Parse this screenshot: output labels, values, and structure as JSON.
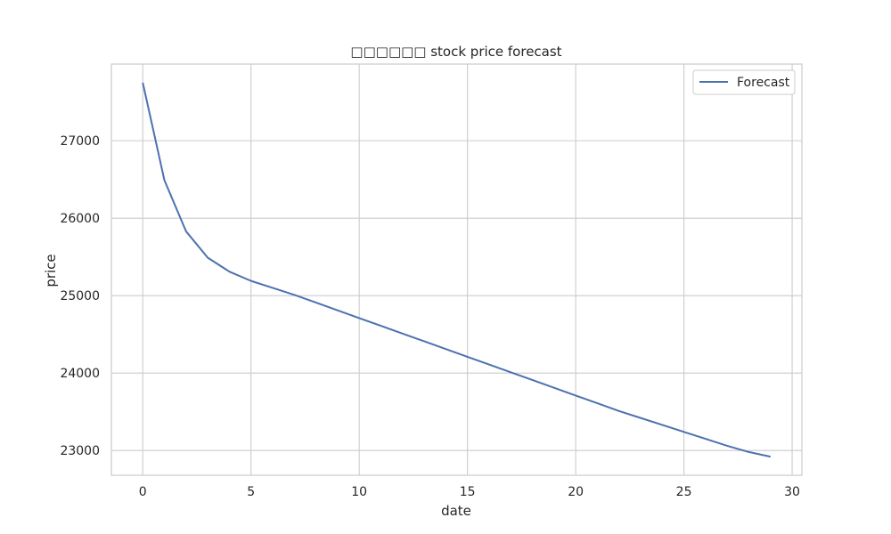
{
  "chart_data": {
    "type": "line",
    "title": "□□□□□□ stock price forecast",
    "xlabel": "date",
    "ylabel": "price",
    "xlim": [
      -1.45,
      30.45
    ],
    "ylim": [
      22680,
      27990
    ],
    "xticks": [
      0,
      5,
      10,
      15,
      20,
      25,
      30
    ],
    "yticks": [
      23000,
      24000,
      25000,
      26000,
      27000
    ],
    "grid": true,
    "legend_position": "top-right",
    "colors": {
      "line": "#4c72b0",
      "grid": "#cccccc",
      "axes_border": "#cccccc",
      "text": "#262626"
    },
    "series": [
      {
        "name": "Forecast",
        "x": [
          0,
          1,
          2,
          3,
          4,
          5,
          6,
          7,
          8,
          9,
          10,
          11,
          12,
          13,
          14,
          15,
          16,
          17,
          18,
          19,
          20,
          21,
          22,
          23,
          24,
          25,
          26,
          27,
          28,
          29
        ],
        "values": [
          27750,
          26490,
          25830,
          25490,
          25310,
          25190,
          25100,
          25010,
          24910,
          24810,
          24710,
          24610,
          24510,
          24410,
          24310,
          24210,
          24110,
          24010,
          23910,
          23810,
          23710,
          23610,
          23510,
          23420,
          23330,
          23240,
          23150,
          23060,
          22980,
          22920
        ]
      }
    ]
  }
}
